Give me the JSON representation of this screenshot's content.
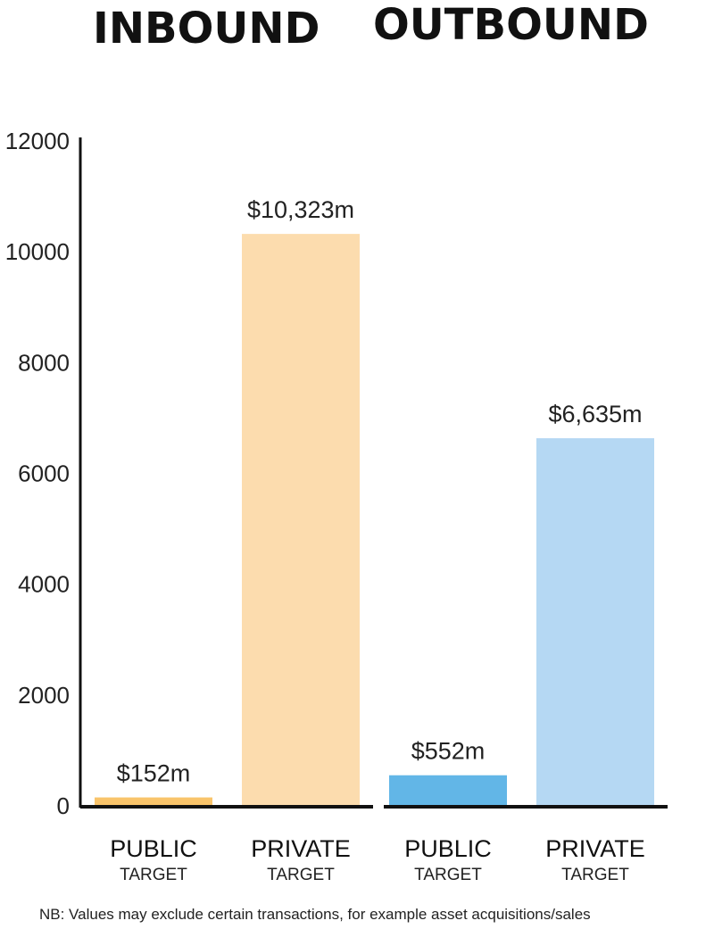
{
  "groups": [
    {
      "title": "INBOUND"
    },
    {
      "title": "OUTBOUND"
    }
  ],
  "note": "NB: Values may exclude certain transactions, for example asset acquisitions/sales",
  "chart_data": {
    "type": "bar",
    "title": "",
    "xlabel": "",
    "ylabel": "",
    "ylim": [
      0,
      12000
    ],
    "yticks": [
      0,
      2000,
      4000,
      6000,
      8000,
      10000,
      12000
    ],
    "grid": false,
    "categories": [
      {
        "main": "PUBLIC",
        "sub": "TARGET",
        "group": "INBOUND"
      },
      {
        "main": "PRIVATE",
        "sub": "TARGET",
        "group": "INBOUND"
      },
      {
        "main": "PUBLIC",
        "sub": "TARGET",
        "group": "OUTBOUND"
      },
      {
        "main": "PRIVATE",
        "sub": "TARGET",
        "group": "OUTBOUND"
      }
    ],
    "values": [
      152,
      10323,
      552,
      6635
    ],
    "value_labels": [
      "$152m",
      "$10,323m",
      "$552m",
      "$6,635m"
    ],
    "colors": [
      "#F9C46B",
      "#FCDCAE",
      "#62B6E7",
      "#B5D8F3"
    ]
  }
}
